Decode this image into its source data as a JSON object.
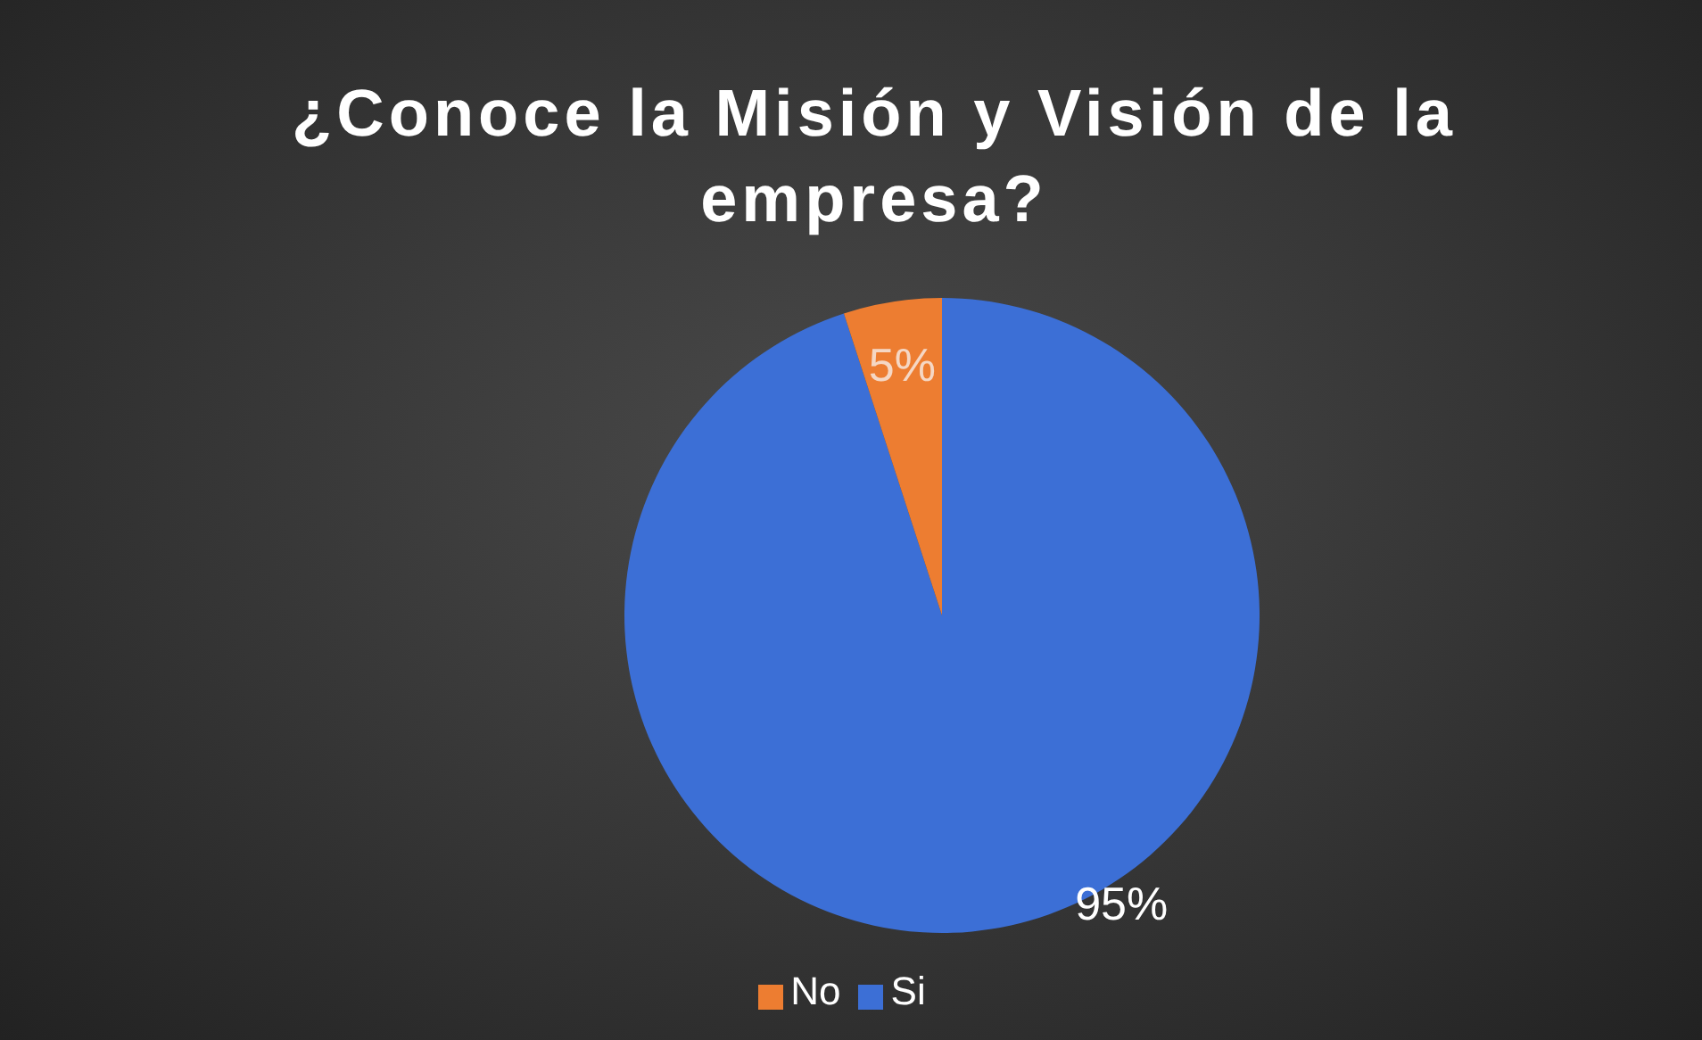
{
  "chart_data": {
    "type": "pie",
    "title": "¿Conoce la Misión y Visión de la empresa?",
    "categories": [
      "Si",
      "No"
    ],
    "values": [
      95,
      5
    ],
    "colors": [
      "#3c6fd6",
      "#ed7d31"
    ],
    "value_labels": [
      "95%",
      "5%"
    ],
    "legend": "bottom"
  }
}
